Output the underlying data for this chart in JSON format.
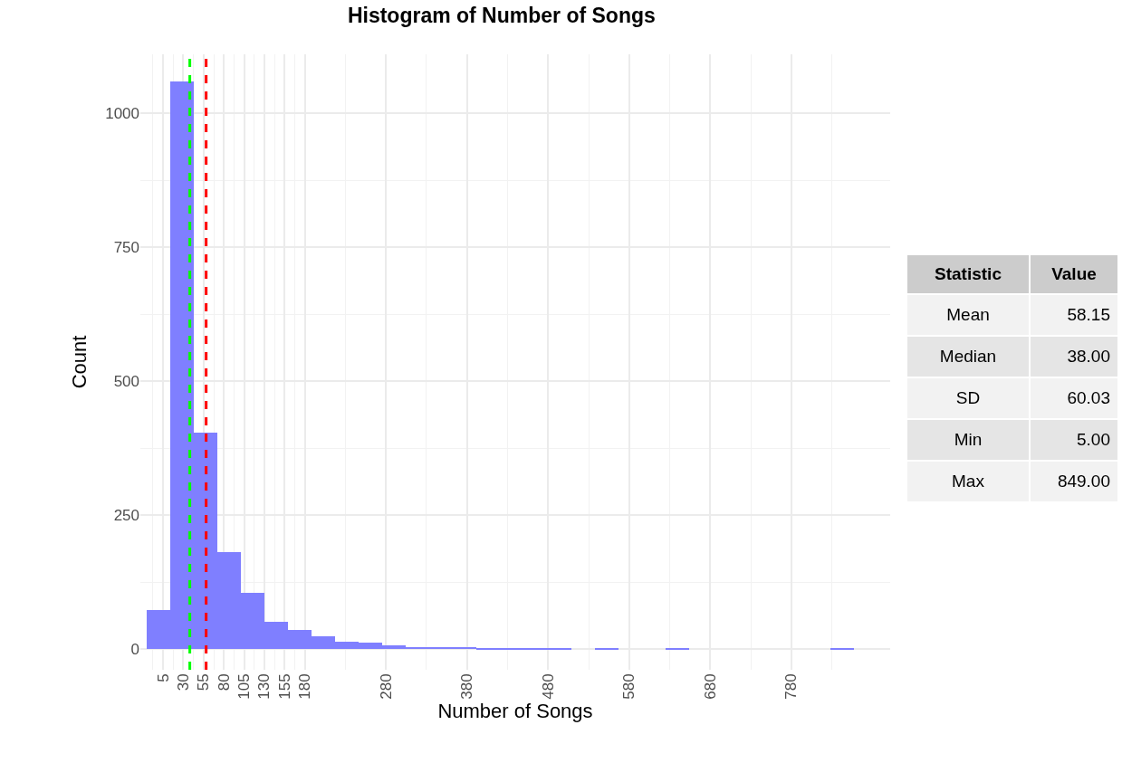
{
  "chart_data": [
    {
      "type": "histogram",
      "title": "Histogram of Number of Songs",
      "xlabel": "Number of Songs",
      "ylabel": "Count",
      "color": "#7f7fff",
      "bins": [
        -15.5,
        13.6,
        42.7,
        71.8,
        100.9,
        130,
        159.1,
        188.2,
        217.3,
        246.4,
        275.5,
        304.6,
        333.7,
        362.8,
        391.9,
        421,
        450.1,
        479.2,
        508.3,
        537.4,
        566.5,
        595.6,
        624.7,
        653.8,
        682.9,
        712,
        741.1,
        770.2,
        799.3,
        828.4,
        857.5
      ],
      "values": [
        74,
        1059,
        404,
        181,
        105,
        51,
        36,
        25,
        14,
        12,
        7,
        4,
        4,
        4,
        3,
        2,
        1,
        1,
        0,
        1,
        0,
        0,
        1,
        0,
        0,
        0,
        0,
        0,
        0,
        1
      ],
      "xlim": [
        -23,
        902
      ],
      "xticks": [
        5,
        30,
        55,
        80,
        105,
        130,
        155,
        180,
        280,
        380,
        480,
        580,
        680,
        780
      ],
      "ylim": [
        -38,
        1110
      ],
      "yticks": [
        0,
        250,
        500,
        750,
        1000
      ],
      "grid": true,
      "ref_lines": [
        {
          "axis": "x",
          "value": 38,
          "label": null,
          "color": "#00ff00",
          "line_style": "dashed"
        },
        {
          "axis": "x",
          "value": 58.15,
          "label": null,
          "color": "#ff0000",
          "line_style": "dashed"
        }
      ]
    },
    {
      "type": "other",
      "xlabel": "Statistic",
      "ylabel": "Value",
      "categories": [
        "Mean",
        "Median",
        "SD",
        "Min",
        "Max"
      ],
      "value_labels": [
        "58.15",
        "38.00",
        "60.03",
        "5.00",
        "849.00"
      ]
    }
  ]
}
